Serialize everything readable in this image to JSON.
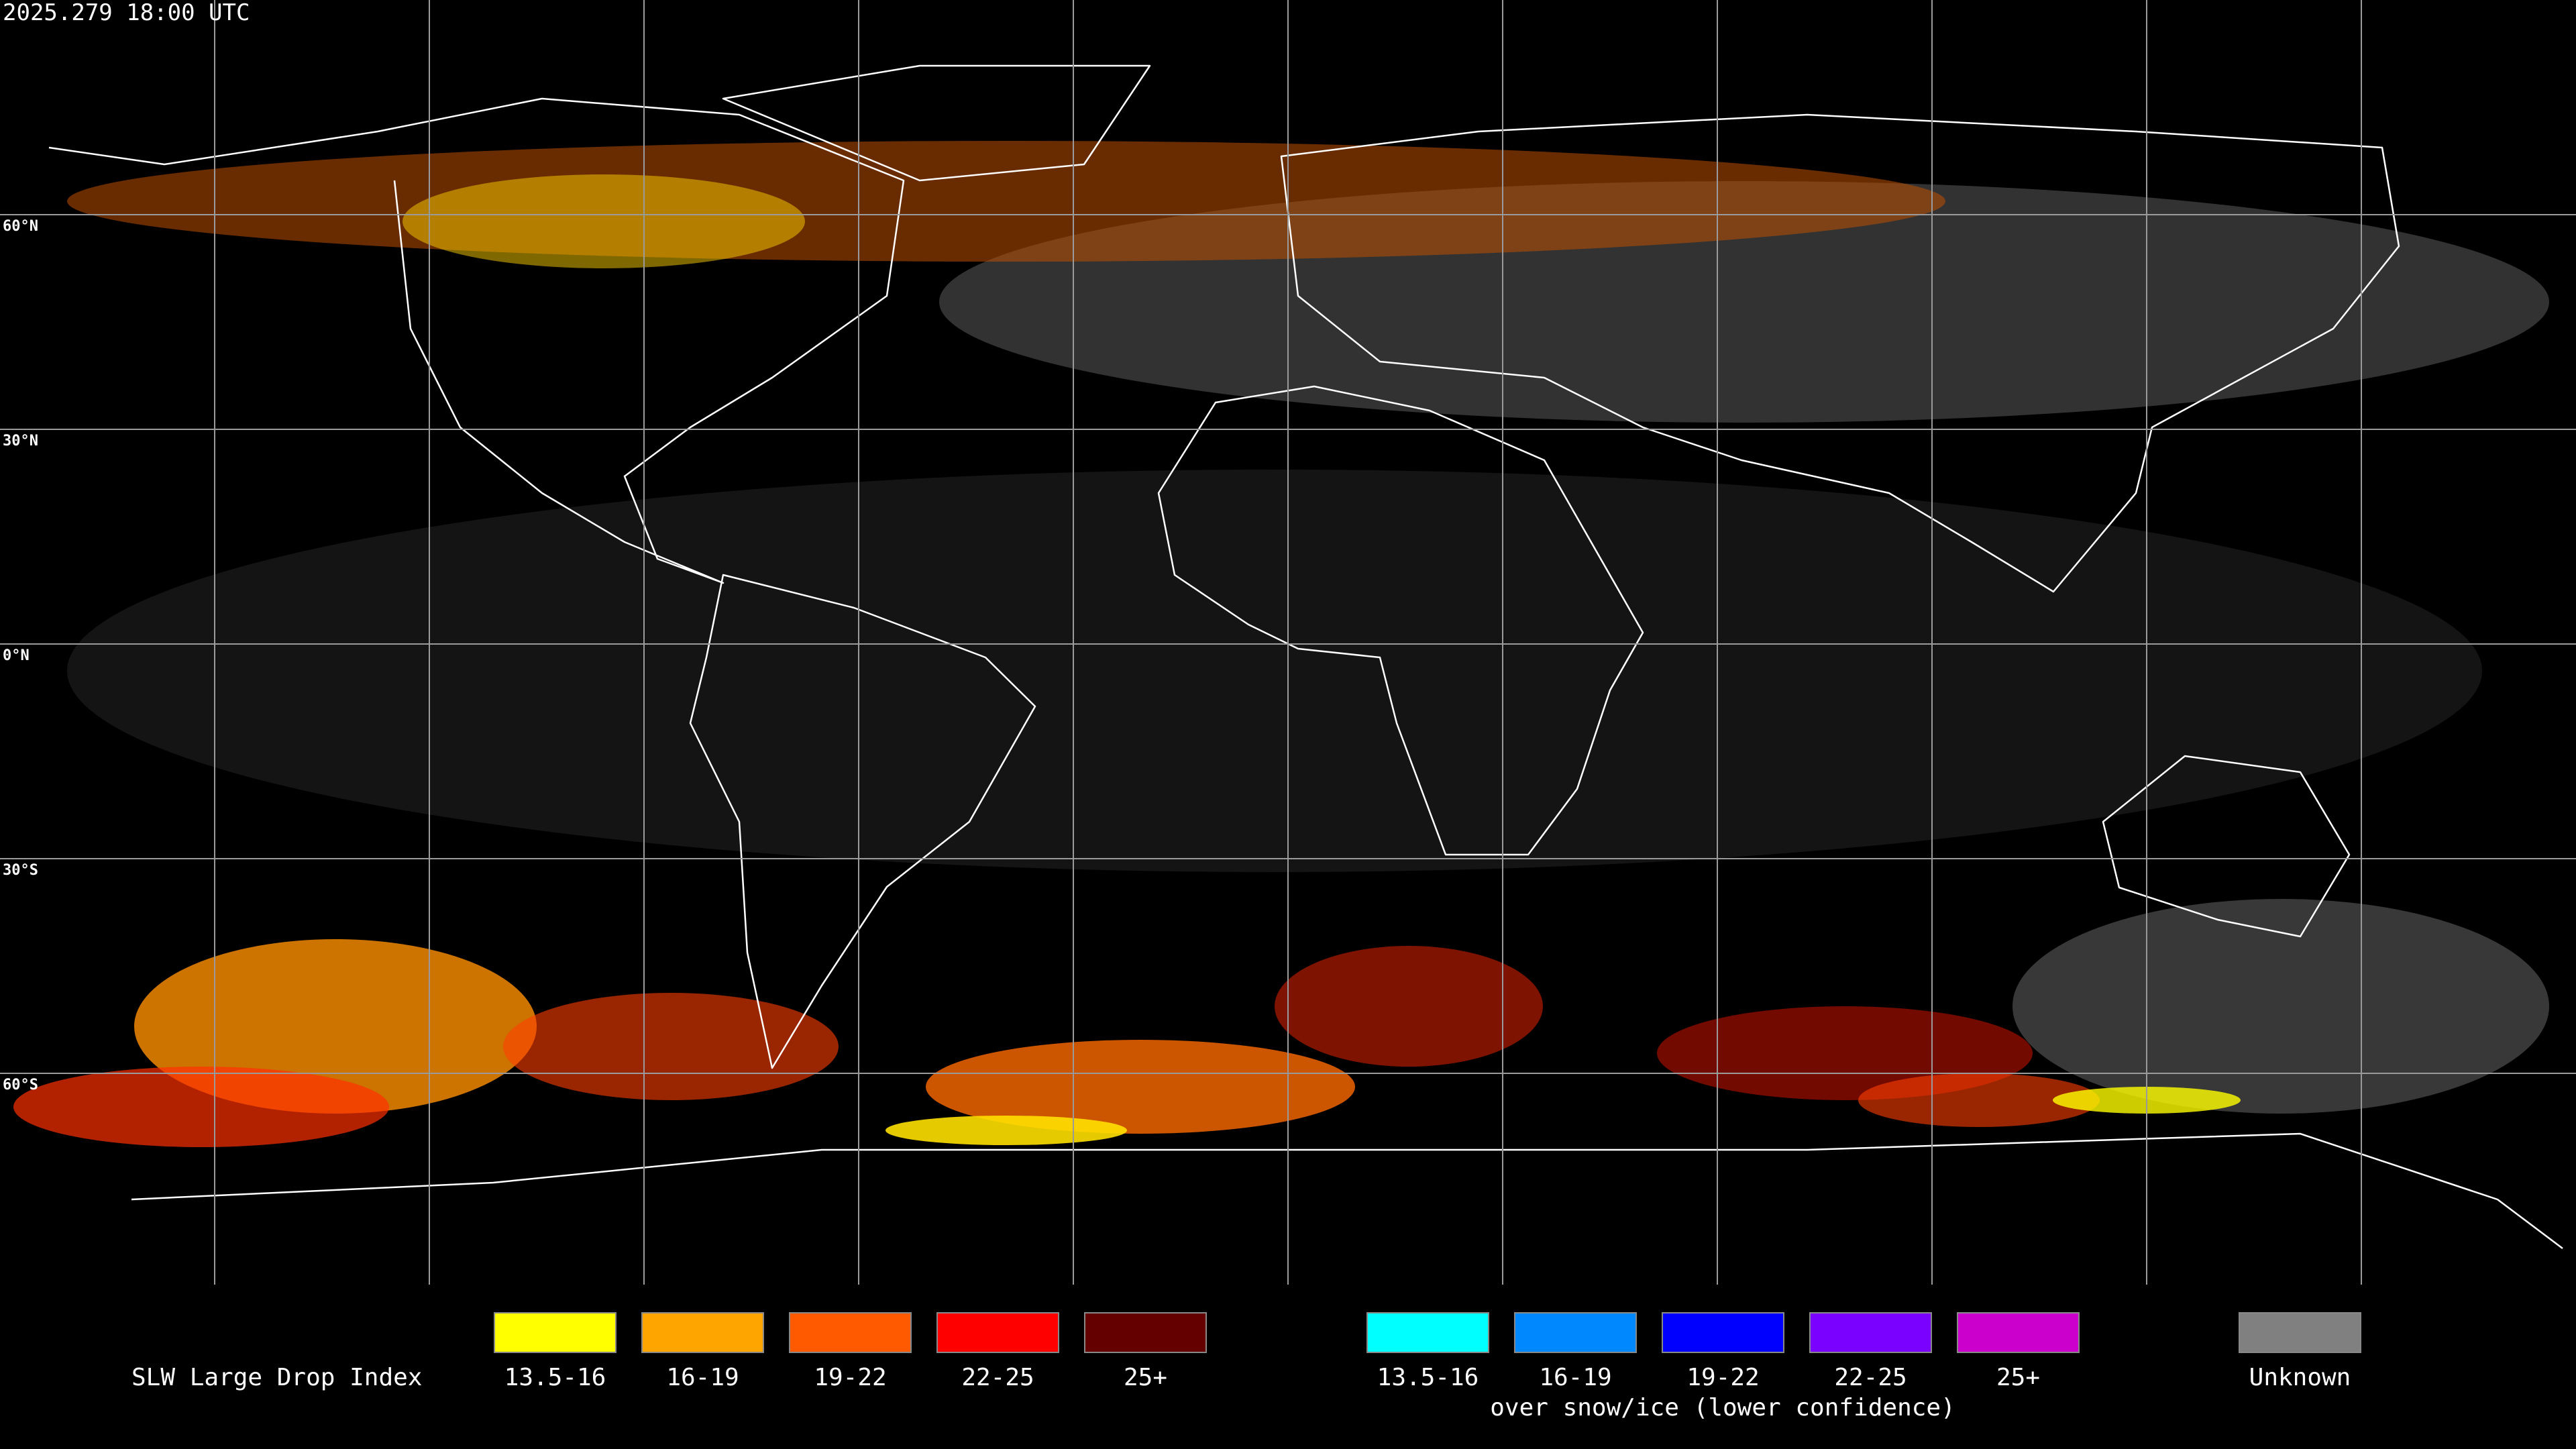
{
  "header": {
    "timestamp": "2025.279 18:00 UTC"
  },
  "map": {
    "latitude_labels": [
      "60°N",
      "30°N",
      "0°N",
      "30°S",
      "60°S"
    ]
  },
  "legend": {
    "title": "SLW Large Drop Index",
    "groups": [
      {
        "items": [
          {
            "label": "13.5-16",
            "color": "#ffff00"
          },
          {
            "label": "16-19",
            "color": "#ffa500"
          },
          {
            "label": "19-22",
            "color": "#ff5a00"
          },
          {
            "label": "22-25",
            "color": "#ff0000"
          },
          {
            "label": "25+",
            "color": "#640000"
          }
        ]
      },
      {
        "items": [
          {
            "label": "13.5-16",
            "color": "#00ffff"
          },
          {
            "label": "16-19",
            "color": "#0088ff"
          },
          {
            "label": "19-22",
            "color": "#0000ff"
          },
          {
            "label": "22-25",
            "color": "#7a00ff"
          },
          {
            "label": "25+",
            "color": "#cc00cc"
          }
        ],
        "caption": "over snow/ice (lower confidence)"
      }
    ],
    "unknown": {
      "label": "Unknown",
      "color": "#808080"
    }
  }
}
